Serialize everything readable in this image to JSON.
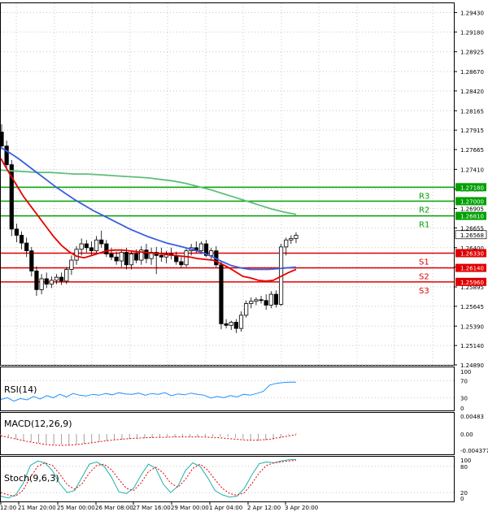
{
  "chart_data": {
    "type": "candlestick",
    "main_panel": {
      "price_ticks": [
        "1.29430",
        "1.29180",
        "1.28925",
        "1.28670",
        "1.28420",
        "1.28165",
        "1.27915",
        "1.27665",
        "1.27410",
        "1.27155",
        "1.26905",
        "1.26655",
        "1.26400",
        "1.26150",
        "1.25895",
        "1.25645",
        "1.25390",
        "1.25140",
        "1.24890"
      ],
      "y_range": [
        1.2489,
        1.2955
      ],
      "levels": [
        {
          "name": "R3",
          "value": 1.2718,
          "price_label": "1.27180",
          "color": "#00a000"
        },
        {
          "name": "R2",
          "value": 1.27,
          "price_label": "1.27000",
          "color": "#00a000"
        },
        {
          "name": "R1",
          "value": 1.2681,
          "price_label": "1.26810",
          "color": "#00a000"
        },
        {
          "name": "S1",
          "value": 1.2633,
          "price_label": "1.26330",
          "color": "#e00000"
        },
        {
          "name": "S2",
          "value": 1.2614,
          "price_label": "1.26140",
          "color": "#e00000"
        },
        {
          "name": "S3",
          "value": 1.2596,
          "price_label": "1.25960",
          "color": "#e00000"
        }
      ],
      "current_price": {
        "value": 1.26568,
        "label": "1.26568"
      },
      "candles": [
        [
          1.2789,
          1.2799,
          1.2767,
          1.2771
        ],
        [
          1.2771,
          1.2778,
          1.2742,
          1.2747
        ],
        [
          1.2747,
          1.2753,
          1.2655,
          1.2664
        ],
        [
          1.2664,
          1.2671,
          1.2647,
          1.2656
        ],
        [
          1.2656,
          1.2661,
          1.2638,
          1.2646
        ],
        [
          1.2646,
          1.2653,
          1.2628,
          1.2636
        ],
        [
          1.2636,
          1.2641,
          1.2603,
          1.261
        ],
        [
          1.261,
          1.2616,
          1.2578,
          1.2586
        ],
        [
          1.2586,
          1.2606,
          1.258,
          1.26
        ],
        [
          1.26,
          1.2608,
          1.2588,
          1.2593
        ],
        [
          1.2593,
          1.2603,
          1.2588,
          1.2598
        ],
        [
          1.2598,
          1.2606,
          1.2593,
          1.2602
        ],
        [
          1.2602,
          1.2608,
          1.2592,
          1.2597
        ],
        [
          1.2597,
          1.2615,
          1.2593,
          1.2612
        ],
        [
          1.2612,
          1.263,
          1.2605,
          1.2624
        ],
        [
          1.2624,
          1.2642,
          1.2618,
          1.2638
        ],
        [
          1.2638,
          1.2652,
          1.263,
          1.2645
        ],
        [
          1.2645,
          1.265,
          1.2634,
          1.264
        ],
        [
          1.264,
          1.2648,
          1.263,
          1.2636
        ],
        [
          1.2636,
          1.2655,
          1.2632,
          1.265
        ],
        [
          1.265,
          1.2662,
          1.264,
          1.2645
        ],
        [
          1.2645,
          1.265,
          1.2628,
          1.2632
        ],
        [
          1.2632,
          1.264,
          1.2624,
          1.2628
        ],
        [
          1.2628,
          1.2635,
          1.2618,
          1.2623
        ],
        [
          1.2623,
          1.2638,
          1.2615,
          1.2634
        ],
        [
          1.2634,
          1.264,
          1.2612,
          1.2618
        ],
        [
          1.2618,
          1.2636,
          1.2612,
          1.2632
        ],
        [
          1.2632,
          1.2638,
          1.262,
          1.2624
        ],
        [
          1.2624,
          1.2642,
          1.2618,
          1.2637
        ],
        [
          1.2637,
          1.2645,
          1.262,
          1.2626
        ],
        [
          1.2626,
          1.264,
          1.2618,
          1.2634
        ],
        [
          1.2634,
          1.2641,
          1.2606,
          1.263
        ],
        [
          1.263,
          1.264,
          1.2622,
          1.2628
        ],
        [
          1.2628,
          1.2636,
          1.262,
          1.2632
        ],
        [
          1.2632,
          1.264,
          1.2625,
          1.263
        ],
        [
          1.263,
          1.2635,
          1.2618,
          1.2622
        ],
        [
          1.2622,
          1.2628,
          1.2614,
          1.2618
        ],
        [
          1.2618,
          1.264,
          1.2615,
          1.2636
        ],
        [
          1.2636,
          1.2645,
          1.263,
          1.264
        ],
        [
          1.264,
          1.2648,
          1.2633,
          1.2636
        ],
        [
          1.2636,
          1.2648,
          1.2632,
          1.2645
        ],
        [
          1.2645,
          1.265,
          1.2628,
          1.263
        ],
        [
          1.263,
          1.264,
          1.2625,
          1.2636
        ],
        [
          1.2636,
          1.2642,
          1.2615,
          1.2618
        ],
        [
          1.2618,
          1.2622,
          1.2535,
          1.2542
        ],
        [
          1.2542,
          1.2548,
          1.2536,
          1.254
        ],
        [
          1.254,
          1.2546,
          1.2534,
          1.2544
        ],
        [
          1.2544,
          1.2548,
          1.253,
          1.2536
        ],
        [
          1.2536,
          1.2558,
          1.2532,
          1.2553
        ],
        [
          1.2553,
          1.2572,
          1.255,
          1.2568
        ],
        [
          1.2568,
          1.2576,
          1.2562,
          1.2571
        ],
        [
          1.2571,
          1.2576,
          1.2566,
          1.2573
        ],
        [
          1.2573,
          1.2578,
          1.2568,
          1.2572
        ],
        [
          1.2572,
          1.258,
          1.256,
          1.2566
        ],
        [
          1.2566,
          1.2584,
          1.2562,
          1.258
        ],
        [
          1.258,
          1.2585,
          1.2563,
          1.2567
        ],
        [
          1.2567,
          1.2645,
          1.2565,
          1.2641
        ],
        [
          1.2641,
          1.2653,
          1.263,
          1.265
        ],
        [
          1.265,
          1.2656,
          1.2645,
          1.2652
        ],
        [
          1.2652,
          1.266,
          1.2646,
          1.2656
        ]
      ],
      "ma_fast_red": [
        1.2755,
        1.2738,
        1.2722,
        1.2706,
        1.2693,
        1.268,
        1.2667,
        1.2654,
        1.2643,
        1.2635,
        1.2629,
        1.2627,
        1.263,
        1.2633,
        1.2636,
        1.2637,
        1.2637,
        1.2636,
        1.2635,
        1.2634,
        1.2633,
        1.2632,
        1.2631,
        1.263,
        1.2629,
        1.2628,
        1.2626,
        1.2625,
        1.2624,
        1.262,
        1.2615,
        1.2609,
        1.2603,
        1.2601,
        1.2598,
        1.2597,
        1.2598,
        1.2603,
        1.2608,
        1.2612
      ],
      "ma_mid_blue": [
        1.2769,
        1.2762,
        1.2754,
        1.2745,
        1.2736,
        1.2727,
        1.2718,
        1.271,
        1.2702,
        1.2695,
        1.2688,
        1.2682,
        1.2676,
        1.267,
        1.2664,
        1.2659,
        1.2654,
        1.265,
        1.2646,
        1.2643,
        1.264,
        1.2637,
        1.2633,
        1.2628,
        1.2622,
        1.2617,
        1.2614,
        1.2612,
        1.2612,
        1.2612,
        1.2613,
        1.2614,
        1.2615
      ],
      "ma_slow_green": [
        1.274,
        1.2739,
        1.2738,
        1.2737,
        1.2737,
        1.2736,
        1.2735,
        1.2735,
        1.2734,
        1.2733,
        1.2732,
        1.2731,
        1.273,
        1.2728,
        1.2726,
        1.2723,
        1.2719,
        1.2715,
        1.271,
        1.2705,
        1.27,
        1.2695,
        1.269,
        1.2686,
        1.2683
      ],
      "legend_labels": [
        "R3",
        "R2",
        "R1",
        "S1",
        "S2",
        "S3"
      ]
    },
    "rsi_panel": {
      "label": "RSI(14)",
      "ticks": [
        "100",
        "70",
        "30",
        "0"
      ],
      "y_range": [
        0,
        100
      ],
      "values": [
        26,
        30,
        22,
        28,
        25,
        33,
        27,
        35,
        30,
        38,
        32,
        40,
        36,
        34,
        38,
        36,
        40,
        37,
        42,
        39,
        38,
        41,
        36,
        40,
        38,
        42,
        35,
        39,
        37,
        41,
        38,
        36,
        29,
        33,
        30,
        35,
        32,
        38,
        36,
        40,
        45,
        60,
        64,
        66,
        67,
        67
      ]
    },
    "macd_panel": {
      "label": "MACD(12,26,9)",
      "ticks": [
        "0.00483",
        "0.00",
        "-0.004377"
      ],
      "y_range": [
        -0.0055,
        0.0055
      ],
      "histogram": [
        -0.0004,
        -0.0009,
        -0.0014,
        -0.0018,
        -0.0021,
        -0.0024,
        -0.0026,
        -0.0028,
        -0.0029,
        -0.0029,
        -0.0028,
        -0.0026,
        -0.0024,
        -0.0021,
        -0.0019,
        -0.0017,
        -0.0015,
        -0.0014,
        -0.0013,
        -0.0012,
        -0.0011,
        -0.001,
        -0.0009,
        -0.0009,
        -0.0008,
        -0.0008,
        -0.0008,
        -0.0007,
        -0.0007,
        -0.0007,
        -0.0008,
        -0.001,
        -0.0014,
        -0.0017,
        -0.0019,
        -0.0018,
        -0.0015,
        -0.001,
        -0.0003,
        0.0002
      ],
      "signal": [
        -0.0005,
        -0.001,
        -0.0015,
        -0.002,
        -0.0024,
        -0.0028,
        -0.003,
        -0.0031,
        -0.003,
        -0.0028,
        -0.0025,
        -0.0022,
        -0.0019,
        -0.0016,
        -0.0014,
        -0.0012,
        -0.0011,
        -0.001,
        -0.0009,
        -0.0009,
        -0.0008,
        -0.0008,
        -0.0008,
        -0.0008,
        -0.0009,
        -0.001,
        -0.0012,
        -0.0014,
        -0.0016,
        -0.0017,
        -0.0016,
        -0.0014,
        -0.001,
        -0.0006,
        -0.0002
      ]
    },
    "stoch_panel": {
      "label": "Stoch(9,6,3)",
      "ticks": [
        "100",
        "80",
        "20",
        "0"
      ],
      "y_range": [
        0,
        100
      ],
      "main": [
        12,
        8,
        15,
        40,
        82,
        92,
        88,
        70,
        40,
        20,
        25,
        55,
        85,
        90,
        80,
        55,
        22,
        18,
        30,
        60,
        85,
        75,
        40,
        20,
        35,
        70,
        88,
        80,
        55,
        25,
        15,
        10,
        12,
        30,
        60,
        86,
        90,
        88,
        92,
        95,
        96
      ],
      "signal": [
        20,
        15,
        12,
        25,
        55,
        80,
        88,
        82,
        62,
        38,
        28,
        40,
        65,
        82,
        85,
        72,
        50,
        30,
        25,
        42,
        68,
        78,
        65,
        42,
        32,
        50,
        75,
        85,
        72,
        50,
        30,
        18,
        14,
        20,
        40,
        65,
        82,
        88,
        90,
        92,
        94
      ]
    },
    "x_tick_labels": [
      "12:00",
      "21 Mar 20:00",
      "25 Mar 00:00",
      "26 Mar 08:00",
      "27 Mar 16:00",
      "29 Mar 00:00",
      "1 Apr 04:00",
      "2 Apr 12:00",
      "3 Apr 20:00"
    ]
  }
}
